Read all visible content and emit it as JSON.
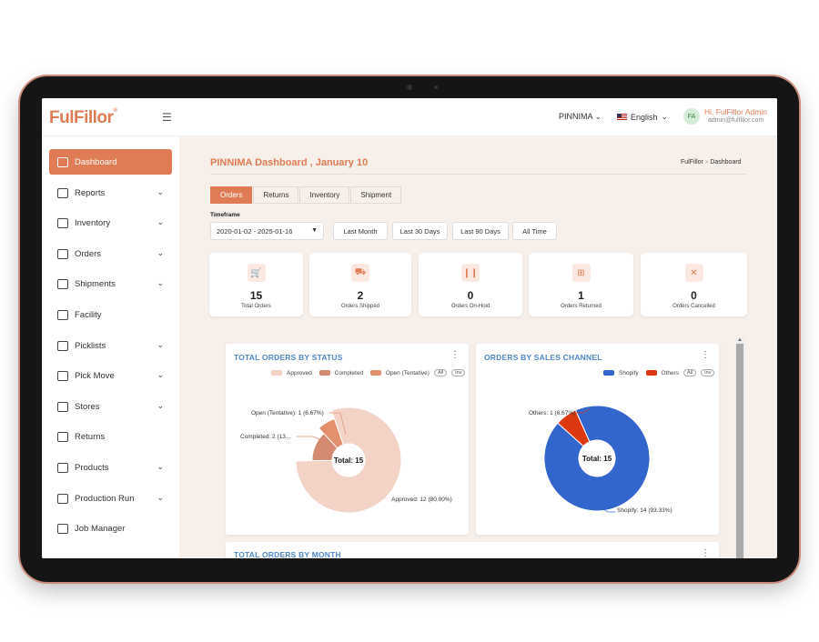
{
  "brand": {
    "logo_text": "FulFillor",
    "tm": "®"
  },
  "header": {
    "store": "PINNIMA",
    "language": "English",
    "user_initials": "FA",
    "user_name": "Hi, FulFillor Admin",
    "user_email": "admin@fulfillor.com"
  },
  "sidebar": {
    "items": [
      {
        "label": "Dashboard",
        "icon": "dashboard-icon",
        "active": true,
        "expandable": false
      },
      {
        "label": "Reports",
        "icon": "reports-icon",
        "active": false,
        "expandable": true
      },
      {
        "label": "Inventory",
        "icon": "inventory-icon",
        "active": false,
        "expandable": true
      },
      {
        "label": "Orders",
        "icon": "orders-icon",
        "active": false,
        "expandable": true
      },
      {
        "label": "Shipments",
        "icon": "shipments-icon",
        "active": false,
        "expandable": true
      },
      {
        "label": "Facility",
        "icon": "facility-icon",
        "active": false,
        "expandable": false
      },
      {
        "label": "Picklists",
        "icon": "picklists-icon",
        "active": false,
        "expandable": true
      },
      {
        "label": "Pick Move",
        "icon": "pick-move-icon",
        "active": false,
        "expandable": true
      },
      {
        "label": "Stores",
        "icon": "stores-icon",
        "active": false,
        "expandable": true
      },
      {
        "label": "Returns",
        "icon": "returns-icon",
        "active": false,
        "expandable": false
      },
      {
        "label": "Products",
        "icon": "products-icon",
        "active": false,
        "expandable": true
      },
      {
        "label": "Production Run",
        "icon": "production-run-icon",
        "active": false,
        "expandable": true
      },
      {
        "label": "Job Manager",
        "icon": "job-manager-icon",
        "active": false,
        "expandable": false
      }
    ]
  },
  "main": {
    "page_title": "PINNIMA Dashboard , January 10",
    "breadcrumb": {
      "root": "FulFillor",
      "separator": ">",
      "current": "Dashboard"
    },
    "tabs": [
      "Orders",
      "Returns",
      "Inventory",
      "Shipment"
    ],
    "active_tab": "Orders",
    "timeframe_label": "Timeframe",
    "date_range": "2020-01-02 - 2025-01-16",
    "quick_ranges": [
      "Last Month",
      "Last 30 Days",
      "Last 90 Days",
      "All Time"
    ],
    "stats": [
      {
        "value": "15",
        "label": "Total Orders",
        "icon": "cart-icon"
      },
      {
        "value": "2",
        "label": "Orders Shipped",
        "icon": "truck-icon"
      },
      {
        "value": "0",
        "label": "Orders On-Hold",
        "icon": "pause-icon"
      },
      {
        "value": "1",
        "label": "Orders Returned",
        "icon": "return-box-icon"
      },
      {
        "value": "0",
        "label": "Orders Cancelled",
        "icon": "cancel-cart-icon"
      }
    ],
    "status_card": {
      "title": "TOTAL ORDERS BY STATUS",
      "pill_all": "All",
      "pill_inv": "Inv"
    },
    "channel_card": {
      "title": "ORDERS BY SALES CHANNEL",
      "pill_all": "All",
      "pill_inv": "Inv"
    },
    "month_card": {
      "title": "TOTAL ORDERS BY MONTH"
    }
  },
  "chart_data": [
    {
      "type": "pie",
      "title": "TOTAL ORDERS BY STATUS",
      "center_label": "Total: 15",
      "categories": [
        "Approved",
        "Completed",
        "Open (Tentative)"
      ],
      "values": [
        12,
        2,
        1
      ],
      "colors": [
        "#f2d3c6",
        "#d38a70",
        "#e3906f"
      ],
      "data_labels": [
        "Approved: 12 (80.00%)",
        "Completed: 2 (13...",
        "Open (Tentative): 1 (6.67%)"
      ],
      "legend": "top"
    },
    {
      "type": "pie",
      "title": "ORDERS BY SALES CHANNEL",
      "center_label": "Total: 15",
      "categories": [
        "Shopify",
        "Others"
      ],
      "values": [
        14,
        1
      ],
      "colors": [
        "#3366cc",
        "#dc3912"
      ],
      "data_labels": [
        "Shopify: 14 (93.33%)",
        "Others: 1 (6.67%)"
      ],
      "legend": "top"
    }
  ]
}
